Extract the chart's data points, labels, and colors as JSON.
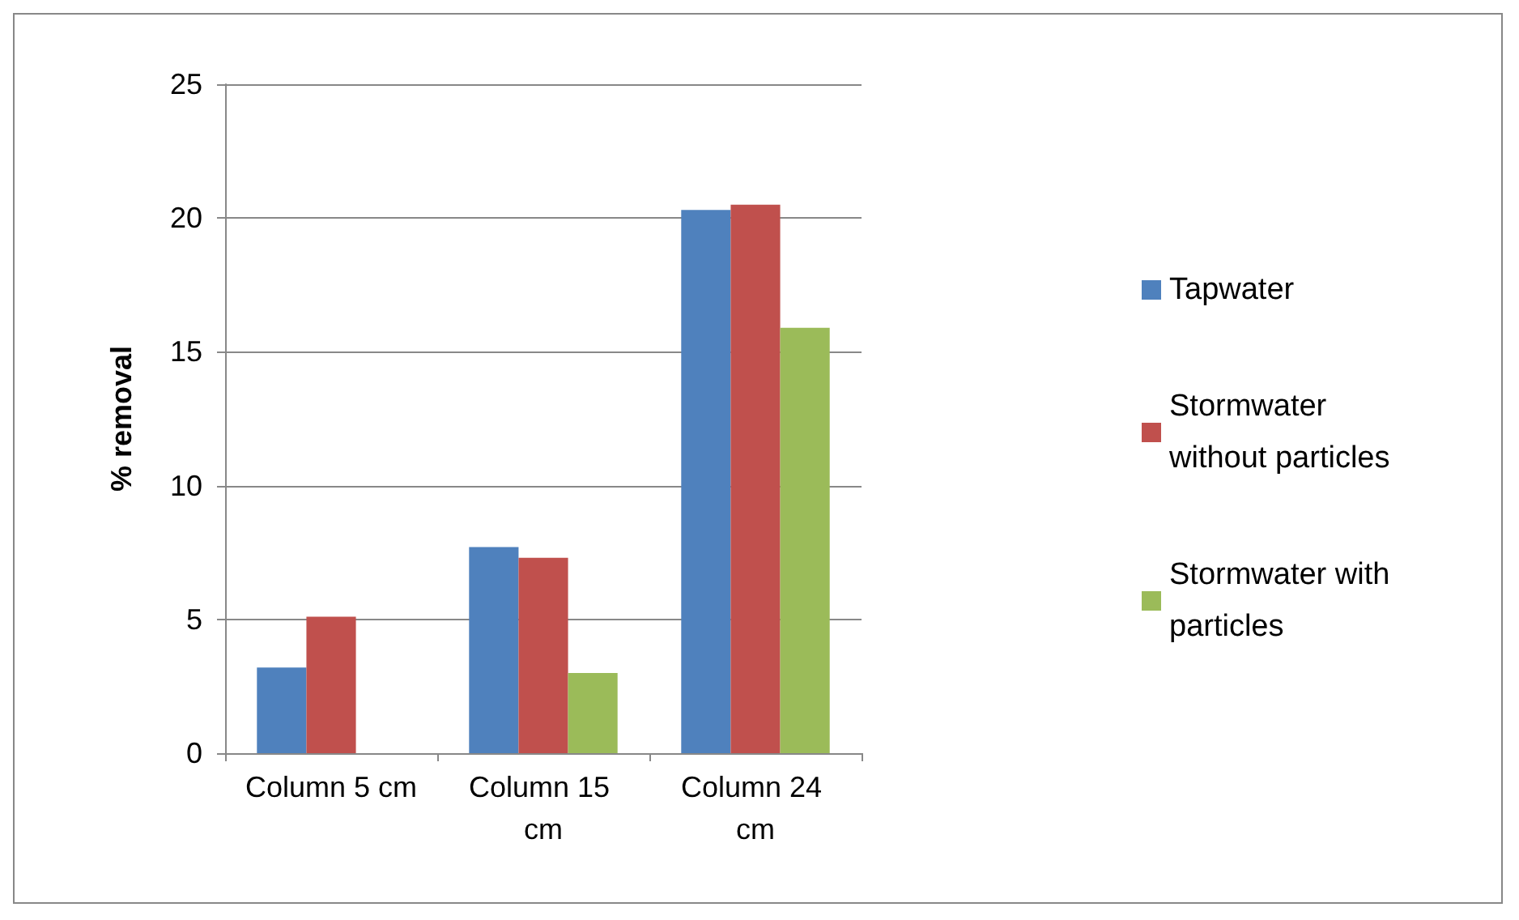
{
  "chart_data": {
    "type": "bar",
    "ylabel": "% removal",
    "categories": [
      "Column 5 cm",
      "Column 15 cm",
      "Column 24 cm"
    ],
    "series": [
      {
        "name": "Tapwater",
        "color": "#4f81bd",
        "values": [
          3.2,
          7.7,
          20.3
        ]
      },
      {
        "name": "Stormwater without particles",
        "color": "#c0504d",
        "values": [
          5.1,
          7.3,
          20.5
        ]
      },
      {
        "name": "Stormwater with particles",
        "color": "#9bbb59",
        "values": [
          null,
          3.0,
          15.9
        ]
      }
    ],
    "ylim": [
      0,
      25
    ],
    "yticks": [
      0,
      5,
      10,
      15,
      20,
      25
    ],
    "grid": "y",
    "legend": "right"
  }
}
